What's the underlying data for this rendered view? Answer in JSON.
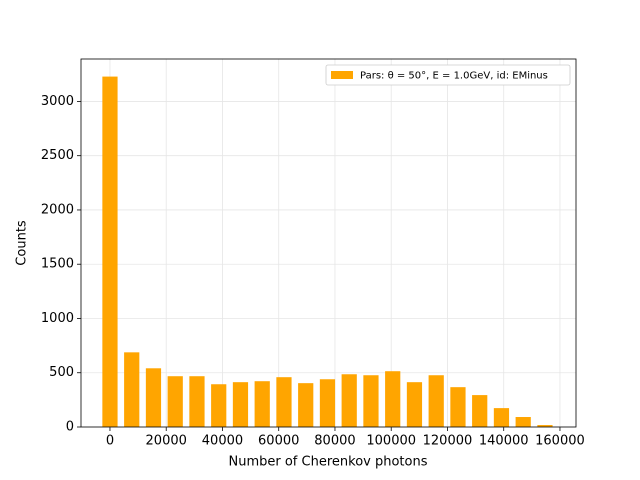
{
  "chart_data": {
    "type": "bar",
    "x": [
      0,
      7733,
      15466,
      23199,
      30932,
      38665,
      46398,
      54131,
      61864,
      69597,
      77330,
      85063,
      92796,
      100529,
      108262,
      115995,
      123728,
      131461,
      139194,
      146927,
      154660
    ],
    "series": [
      {
        "name": "Pars: θ = 50°, E = 1.0GeV, id: EMinus",
        "color": "#ffa500",
        "values": [
          3229,
          688,
          541,
          468,
          468,
          394,
          413,
          422,
          459,
          404,
          440,
          486,
          477,
          514,
          413,
          477,
          367,
          294,
          174,
          92,
          18
        ]
      }
    ],
    "xlabel": "Number of Cherenkov photons",
    "ylabel": "Counts",
    "xlim": [
      -10300,
      165700
    ],
    "ylim": [
      0,
      3391
    ],
    "xticks": [
      0,
      20000,
      40000,
      60000,
      80000,
      100000,
      120000,
      140000,
      160000
    ],
    "yticks": [
      0,
      500,
      1000,
      1500,
      2000,
      2500,
      3000
    ],
    "grid": true,
    "legend": "upper right"
  }
}
